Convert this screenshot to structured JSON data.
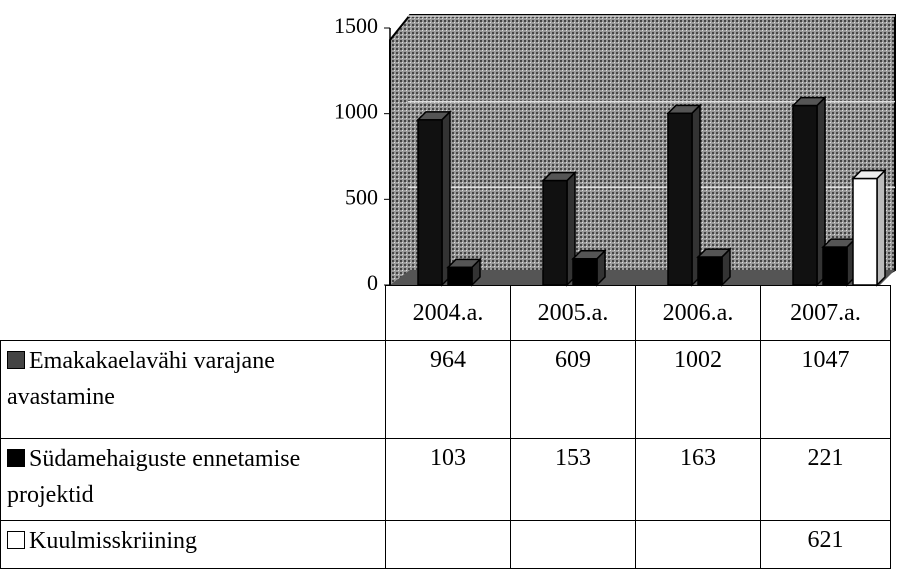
{
  "chart_data": {
    "type": "bar",
    "categories": [
      "2004.a.",
      "2005.a.",
      "2006.a.",
      "2007.a."
    ],
    "series": [
      {
        "name": "Emakakaelavähi varajane avastamine",
        "color": "#111111",
        "values": [
          964,
          609,
          1002,
          1047
        ]
      },
      {
        "name": "Südamehaiguste ennetamise projektid",
        "color": "#000000",
        "values": [
          103,
          153,
          163,
          221
        ]
      },
      {
        "name": "Kuulmisskriining",
        "color": "#ffffff",
        "values": [
          null,
          null,
          null,
          621
        ]
      }
    ],
    "ylim": [
      0,
      1500
    ],
    "yticks": [
      0,
      500,
      1000,
      1500
    ],
    "grid": true
  }
}
